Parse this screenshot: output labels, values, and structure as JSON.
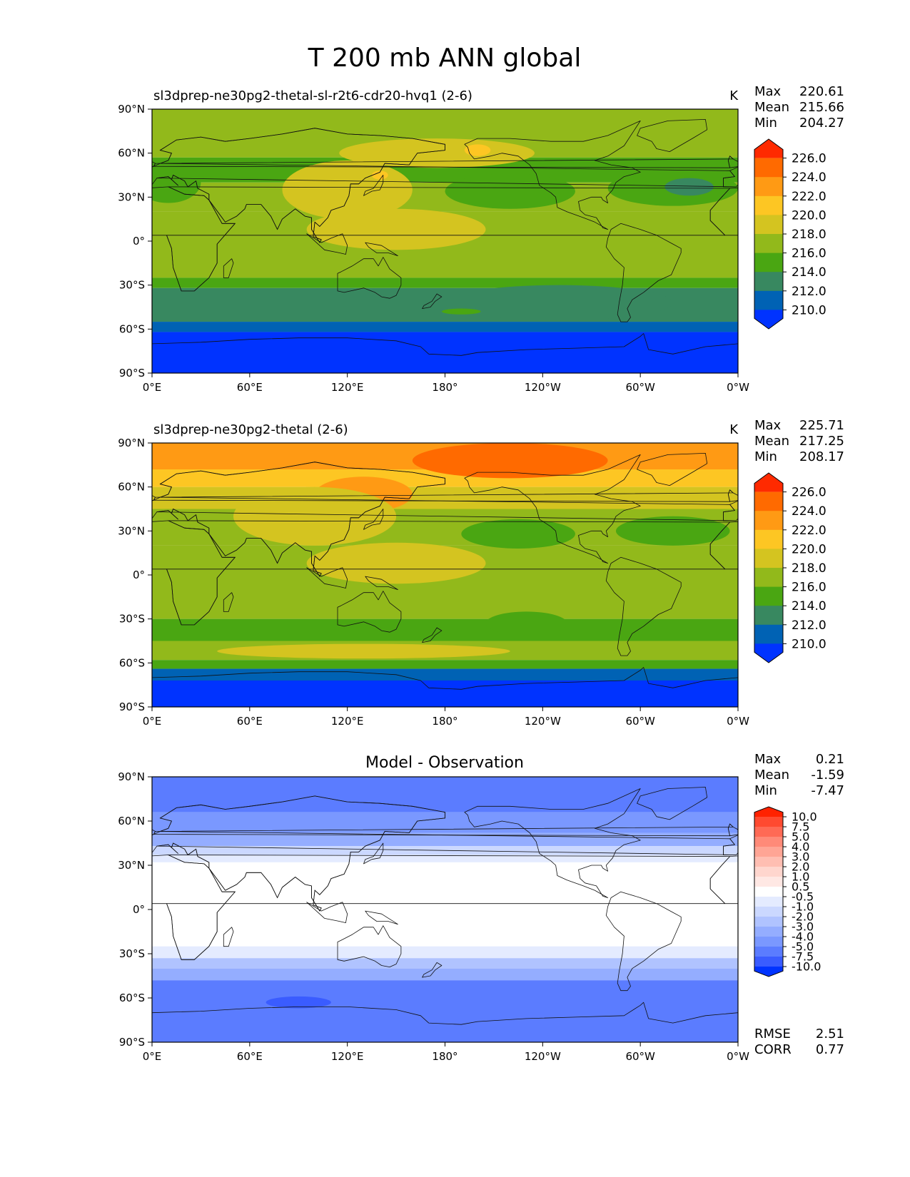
{
  "figure": {
    "title": "T 200 mb ANN global"
  },
  "chart_data": [
    {
      "type": "heatmap",
      "title": "sl3dprep-ne30pg2-thetal-sl-r2t6-cdr20-hvq1 (2-6)",
      "units": "K",
      "stats": {
        "max_label": "Max",
        "max": "220.61",
        "mean_label": "Mean",
        "mean": "215.66",
        "min_label": "Min",
        "min": "204.27"
      },
      "x_ticks": [
        "0°E",
        "60°E",
        "120°E",
        "180°",
        "120°W",
        "60°W",
        "0°W"
      ],
      "y_ticks": [
        "90°N",
        "60°N",
        "30°N",
        "0°",
        "30°S",
        "60°S",
        "90°S"
      ],
      "colorbar": {
        "levels": [
          "226.0",
          "224.0",
          "222.0",
          "220.0",
          "218.0",
          "216.0",
          "214.0",
          "212.0",
          "210.0"
        ],
        "colors": [
          "#ff2a00",
          "#ff6a00",
          "#ff9a14",
          "#fdc623",
          "#d4c420",
          "#92b91b",
          "#4aa612",
          "#388860",
          "#0062b4",
          "#0033ff"
        ]
      },
      "field": {
        "bands": [
          {
            "lat_from": 90,
            "lat_to": 57,
            "value": 216.0
          },
          {
            "lat_from": 57,
            "lat_to": 40,
            "value": 214.0
          },
          {
            "lat_from": 40,
            "lat_to": 20,
            "value": 216.0
          },
          {
            "lat_from": 20,
            "lat_to": -25,
            "value": 216.0
          },
          {
            "lat_from": -25,
            "lat_to": -32,
            "value": 214.0
          },
          {
            "lat_from": -32,
            "lat_to": -55,
            "value": 212.0
          },
          {
            "lat_from": -55,
            "lat_to": -62,
            "value": 211.0
          },
          {
            "lat_from": -62,
            "lat_to": -90,
            "value": 209.0
          }
        ],
        "blobs": [
          {
            "lon": 150,
            "lat": 8,
            "rx": 55,
            "ry": 14,
            "value": 218.0
          },
          {
            "lon": 120,
            "lat": 35,
            "rx": 40,
            "ry": 20,
            "value": 218.0
          },
          {
            "lon": 175,
            "lat": 60,
            "rx": 60,
            "ry": 10,
            "value": 218.0
          },
          {
            "lon": 200,
            "lat": 62,
            "rx": 8,
            "ry": 4,
            "value": 220.0
          },
          {
            "lon": 140,
            "lat": 45,
            "rx": 5,
            "ry": 3,
            "value": 220.0
          },
          {
            "lon": 220,
            "lat": 34,
            "rx": 40,
            "ry": 12,
            "value": 214.0
          },
          {
            "lon": 320,
            "lat": 36,
            "rx": 40,
            "ry": 12,
            "value": 214.0
          },
          {
            "lon": 330,
            "lat": 37,
            "rx": 15,
            "ry": 6,
            "value": 212.0
          },
          {
            "lon": 10,
            "lat": 40,
            "rx": 20,
            "ry": 14,
            "value": 214.0
          },
          {
            "lon": 250,
            "lat": -42,
            "rx": 70,
            "ry": 12,
            "value": 212.0
          },
          {
            "lon": 190,
            "lat": -48,
            "rx": 12,
            "ry": 2,
            "value": 214.0
          }
        ]
      }
    },
    {
      "type": "heatmap",
      "title": "sl3dprep-ne30pg2-thetal (2-6)",
      "units": "K",
      "stats": {
        "max_label": "Max",
        "max": "225.71",
        "mean_label": "Mean",
        "mean": "217.25",
        "min_label": "Min",
        "min": "208.17"
      },
      "x_ticks": [
        "0°E",
        "60°E",
        "120°E",
        "180°",
        "120°W",
        "60°W",
        "0°W"
      ],
      "y_ticks": [
        "90°N",
        "60°N",
        "30°N",
        "0°",
        "30°S",
        "60°S",
        "90°S"
      ],
      "colorbar": {
        "levels": [
          "226.0",
          "224.0",
          "222.0",
          "220.0",
          "218.0",
          "216.0",
          "214.0",
          "212.0",
          "210.0"
        ],
        "colors": [
          "#ff2a00",
          "#ff6a00",
          "#ff9a14",
          "#fdc623",
          "#d4c420",
          "#92b91b",
          "#4aa612",
          "#388860",
          "#0062b4",
          "#0033ff"
        ]
      },
      "field": {
        "bands": [
          {
            "lat_from": 90,
            "lat_to": 72,
            "value": 222.0
          },
          {
            "lat_from": 72,
            "lat_to": 60,
            "value": 220.0
          },
          {
            "lat_from": 60,
            "lat_to": 45,
            "value": 218.0
          },
          {
            "lat_from": 45,
            "lat_to": 20,
            "value": 216.0
          },
          {
            "lat_from": 20,
            "lat_to": -30,
            "value": 216.0
          },
          {
            "lat_from": -30,
            "lat_to": -45,
            "value": 214.0
          },
          {
            "lat_from": -45,
            "lat_to": -58,
            "value": 216.0
          },
          {
            "lat_from": -58,
            "lat_to": -64,
            "value": 214.0
          },
          {
            "lat_from": -64,
            "lat_to": -72,
            "value": 211.0
          },
          {
            "lat_from": -72,
            "lat_to": -90,
            "value": 209.0
          }
        ],
        "blobs": [
          {
            "lon": 220,
            "lat": 78,
            "rx": 60,
            "ry": 12,
            "value": 224.0
          },
          {
            "lon": 130,
            "lat": 55,
            "rx": 30,
            "ry": 12,
            "value": 222.0
          },
          {
            "lon": 100,
            "lat": 40,
            "rx": 50,
            "ry": 20,
            "value": 218.0
          },
          {
            "lon": 150,
            "lat": 8,
            "rx": 55,
            "ry": 14,
            "value": 218.0
          },
          {
            "lon": 130,
            "lat": -52,
            "rx": 90,
            "ry": 5,
            "value": 218.0
          },
          {
            "lon": 225,
            "lat": 28,
            "rx": 35,
            "ry": 10,
            "value": 214.0
          },
          {
            "lon": 320,
            "lat": 30,
            "rx": 35,
            "ry": 10,
            "value": 214.0
          },
          {
            "lon": 230,
            "lat": -33,
            "rx": 25,
            "ry": 8,
            "value": 214.0
          }
        ]
      }
    },
    {
      "type": "heatmap",
      "title": "Model - Observation",
      "units": "",
      "stats": {
        "max_label": "Max",
        "max": "0.21",
        "mean_label": "Mean",
        "mean": "-1.59",
        "min_label": "Min",
        "min": "-7.47"
      },
      "metrics": {
        "rmse_label": "RMSE",
        "rmse": "2.51",
        "corr_label": "CORR",
        "corr": "0.77"
      },
      "x_ticks": [
        "0°E",
        "60°E",
        "120°E",
        "180°",
        "120°W",
        "60°W",
        "0°W"
      ],
      "y_ticks": [
        "90°N",
        "60°N",
        "30°N",
        "0°",
        "30°S",
        "60°S",
        "90°S"
      ],
      "colorbar": {
        "levels": [
          "10.0",
          "7.5",
          "5.0",
          "4.0",
          "3.0",
          "2.0",
          "1.0",
          "0.5",
          "-0.5",
          "-1.0",
          "-2.0",
          "-3.0",
          "-4.0",
          "-5.0",
          "-7.5",
          "-10.0"
        ],
        "colors": [
          "#ff2200",
          "#ff4a30",
          "#ff6a55",
          "#ff8a78",
          "#ffa595",
          "#ffbeb2",
          "#ffd6ce",
          "#ffe8e4",
          "#ffffff",
          "#e4ebff",
          "#cbd8ff",
          "#b0c3ff",
          "#94adff",
          "#7a98ff",
          "#5b7cff",
          "#3a5cff",
          "#0033ff"
        ]
      },
      "field": {
        "bands": [
          {
            "lat_from": 90,
            "lat_to": 66,
            "value": -6.0
          },
          {
            "lat_from": 66,
            "lat_to": 52,
            "value": -4.5
          },
          {
            "lat_from": 52,
            "lat_to": 43,
            "value": -3.5
          },
          {
            "lat_from": 43,
            "lat_to": 37,
            "value": -1.5
          },
          {
            "lat_from": 37,
            "lat_to": 32,
            "value": -0.7
          },
          {
            "lat_from": 32,
            "lat_to": -25,
            "value": 0.0
          },
          {
            "lat_from": -25,
            "lat_to": -33,
            "value": -0.7
          },
          {
            "lat_from": -33,
            "lat_to": -40,
            "value": -2.5
          },
          {
            "lat_from": -40,
            "lat_to": -48,
            "value": -3.5
          },
          {
            "lat_from": -48,
            "lat_to": -90,
            "value": -6.0
          }
        ],
        "blobs": [
          {
            "lon": 90,
            "lat": -63,
            "rx": 20,
            "ry": 4,
            "value": -8.0
          }
        ]
      }
    }
  ]
}
